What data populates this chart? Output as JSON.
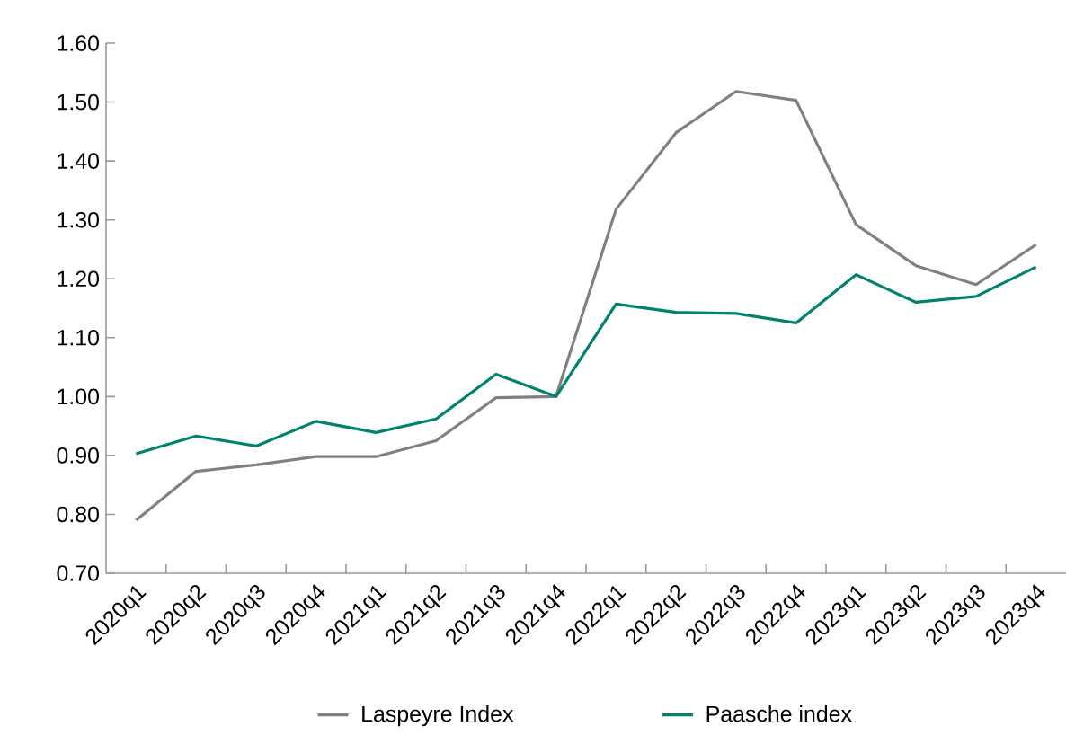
{
  "chart_data": {
    "type": "line",
    "categories": [
      "2020q1",
      "2020q2",
      "2020q3",
      "2020q4",
      "2021q1",
      "2021q2",
      "2021q3",
      "2021q4",
      "2022q1",
      "2022q2",
      "2022q3",
      "2022q4",
      "2023q1",
      "2023q2",
      "2023q3",
      "2023q4"
    ],
    "series": [
      {
        "name": "Laspeyre Index",
        "color": "#808080",
        "values": [
          0.79,
          0.873,
          0.884,
          0.898,
          0.898,
          0.925,
          0.998,
          1.0,
          1.318,
          1.448,
          1.518,
          1.503,
          1.292,
          1.222,
          1.19,
          1.258
        ]
      },
      {
        "name": "Paasche index",
        "color": "#00836d",
        "values": [
          0.903,
          0.933,
          0.916,
          0.958,
          0.939,
          0.962,
          1.038,
          1.0,
          1.157,
          1.143,
          1.141,
          1.125,
          1.207,
          1.16,
          1.17,
          1.22
        ]
      }
    ],
    "ylim": [
      0.7,
      1.6
    ],
    "yticks": [
      {
        "value": 0.7,
        "label": "0.70"
      },
      {
        "value": 0.8,
        "label": "0.80"
      },
      {
        "value": 0.9,
        "label": "0.90"
      },
      {
        "value": 1.0,
        "label": "1.00"
      },
      {
        "value": 1.1,
        "label": "1.10"
      },
      {
        "value": 1.2,
        "label": "1.20"
      },
      {
        "value": 1.3,
        "label": "1.30"
      },
      {
        "value": 1.4,
        "label": "1.40"
      },
      {
        "value": 1.5,
        "label": "1.50"
      },
      {
        "value": 1.6,
        "label": "1.60"
      }
    ],
    "grid": false,
    "legend": "bottom",
    "marker": "none",
    "line_style": "solid"
  }
}
